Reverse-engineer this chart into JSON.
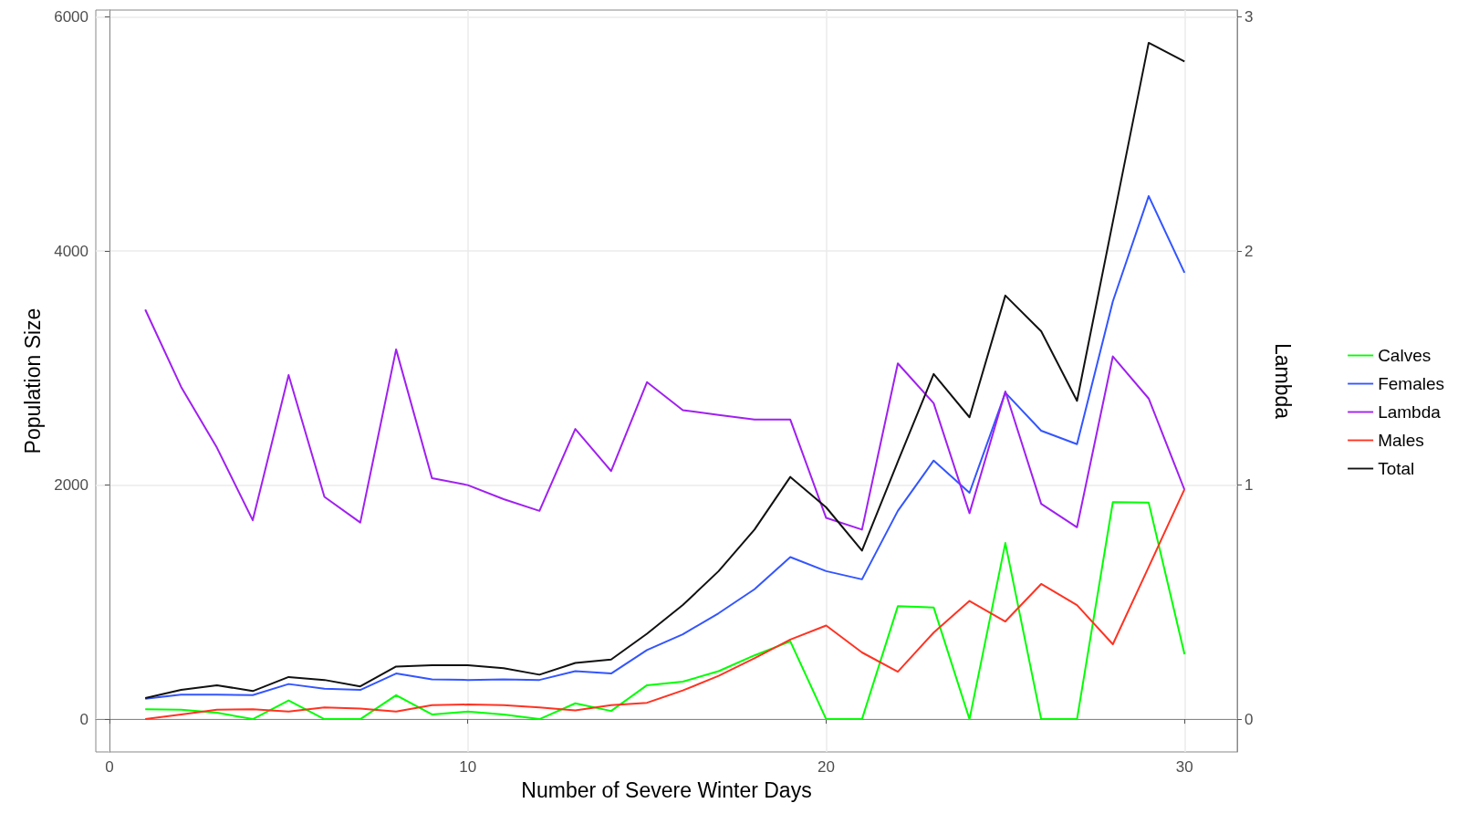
{
  "chart_data": {
    "type": "line",
    "xlabel": "Number of Severe Winter Days",
    "ylabel": "Population Size",
    "y2label": "Lambda",
    "x": [
      1,
      2,
      3,
      4,
      5,
      6,
      7,
      8,
      9,
      10,
      11,
      12,
      13,
      14,
      15,
      16,
      17,
      18,
      19,
      20,
      21,
      22,
      23,
      24,
      25,
      26,
      27,
      28,
      29,
      30
    ],
    "series": [
      {
        "name": "Calves",
        "color": "#00ff00",
        "values": [
          85,
          80,
          55,
          0,
          160,
          0,
          0,
          205,
          40,
          65,
          40,
          0,
          135,
          70,
          290,
          320,
          410,
          545,
          665,
          0,
          0,
          965,
          955,
          0,
          1505,
          0,
          0,
          1855,
          1850,
          555
        ]
      },
      {
        "name": "Females",
        "color": "#3355ff",
        "values": [
          175,
          210,
          210,
          205,
          300,
          260,
          250,
          390,
          340,
          335,
          340,
          335,
          410,
          390,
          590,
          725,
          905,
          1110,
          1385,
          1265,
          1195,
          1780,
          2210,
          1935,
          2790,
          2465,
          2350,
          3570,
          4470,
          3815
        ]
      },
      {
        "name": "Lambda",
        "color": "#a020f0",
        "axis": "y2",
        "values": [
          1.75,
          1.42,
          1.16,
          0.85,
          1.47,
          0.95,
          0.84,
          1.58,
          1.03,
          1.0,
          0.94,
          0.89,
          1.24,
          1.06,
          1.44,
          1.32,
          1.3,
          1.28,
          1.28,
          0.86,
          0.81,
          1.52,
          1.35,
          0.88,
          1.4,
          0.92,
          0.82,
          1.55,
          1.37,
          0.98
        ]
      },
      {
        "name": "Males",
        "color": "#ff3322",
        "values": [
          0,
          40,
          80,
          85,
          65,
          100,
          90,
          65,
          120,
          125,
          120,
          100,
          75,
          120,
          140,
          245,
          370,
          520,
          680,
          800,
          570,
          405,
          740,
          1010,
          835,
          1155,
          975,
          640,
          1300,
          1965
        ]
      },
      {
        "name": "Total",
        "color": "#111111",
        "values": [
          180,
          250,
          290,
          240,
          360,
          335,
          280,
          450,
          460,
          460,
          435,
          380,
          480,
          510,
          730,
          975,
          1265,
          1620,
          2070,
          1810,
          1440,
          2200,
          2950,
          2580,
          3620,
          3315,
          2720,
          4250,
          5780,
          5620
        ]
      }
    ],
    "xlim": [
      -0.38,
      31.47
    ],
    "xticks": [
      0,
      10,
      20,
      30
    ],
    "ylim": [
      -280,
      6060
    ],
    "yticks": [
      0,
      2000,
      4000,
      6000
    ],
    "y2lim": [
      -0.14,
      3.03
    ],
    "y2ticks": [
      0,
      1,
      2,
      3
    ],
    "grid": true,
    "legend": "right",
    "marker": "none",
    "line_style": "solid"
  }
}
